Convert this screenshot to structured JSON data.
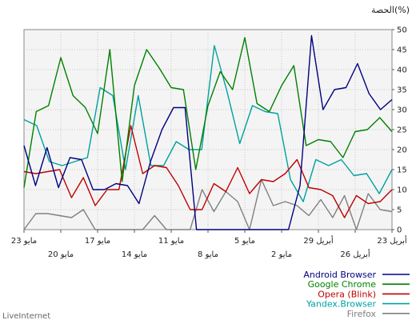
{
  "chart_data": {
    "type": "line",
    "ylabel": "الحصة(%)",
    "ylim": [
      0,
      50
    ],
    "y_ticks": [
      0,
      5,
      10,
      15,
      20,
      25,
      30,
      35,
      40,
      45,
      50
    ],
    "x_axis": "reversed (right = 23 أبريل, left = 23 مايو)",
    "grid": true,
    "legend_position": "bottom-right",
    "x_tick_labels_row1": [
      "23 أبريل",
      "29 أبريل",
      "5 مايو",
      "11 مايو",
      "17 مايو",
      "23 مايو"
    ],
    "x_tick_labels_row2": [
      "26 أبريل",
      "2 مايو",
      "8 مايو",
      "14 مايو",
      "20 مايو"
    ],
    "series": [
      {
        "name": "Android Browser",
        "color": "#000080",
        "values": [
          32.5,
          30,
          34,
          41.5,
          35.5,
          35,
          30,
          48.5,
          11,
          0,
          0,
          0,
          0,
          0,
          0,
          0,
          0,
          0,
          30.5,
          30.5,
          25,
          17,
          6.5,
          11,
          11.5,
          10,
          10,
          17.5,
          18,
          10.5,
          20.5,
          11,
          21
        ]
      },
      {
        "name": "Google Chrome",
        "color": "#008000",
        "values": [
          24.5,
          28,
          25,
          24.5,
          18,
          22,
          22.5,
          21,
          41,
          36,
          29.5,
          31.5,
          48,
          35,
          39.5,
          31,
          15,
          35,
          35.5,
          40.5,
          45,
          36,
          12,
          45,
          24,
          30.5,
          33.5,
          43,
          31,
          29.5,
          10.5
        ]
      },
      {
        "name": "Opera (Blink)",
        "color": "#c00000",
        "values": [
          10,
          7,
          6.5,
          8.5,
          3,
          8.5,
          10,
          10.5,
          17.5,
          14,
          12,
          12.5,
          9,
          15.5,
          9.5,
          11.5,
          5,
          5,
          11,
          15.5,
          16,
          14,
          26,
          10,
          10,
          6,
          13,
          8,
          15,
          14.5,
          14,
          14.5
        ]
      },
      {
        "name": "Yandex.Browser",
        "color": "#00a0a0",
        "values": [
          15,
          9,
          14,
          13.5,
          17.5,
          16,
          17.5,
          7,
          12.5,
          29,
          29.5,
          31,
          21.5,
          34.5,
          46,
          20,
          20,
          22,
          16,
          16,
          33.5,
          15,
          33.5,
          35.5,
          18,
          17,
          16,
          17,
          26,
          27.5
        ]
      },
      {
        "name": "Firefox",
        "color": "#808080",
        "values": [
          4.5,
          5,
          9,
          0,
          8.5,
          3,
          7.5,
          3.5,
          6,
          7,
          6,
          12.5,
          0,
          7,
          9.5,
          4.5,
          10,
          0,
          0,
          0,
          3.5,
          0,
          0,
          0,
          0,
          0,
          5,
          3,
          3.5,
          4,
          4,
          0
        ]
      }
    ]
  },
  "footer": {
    "brand": "LiveInternet"
  }
}
